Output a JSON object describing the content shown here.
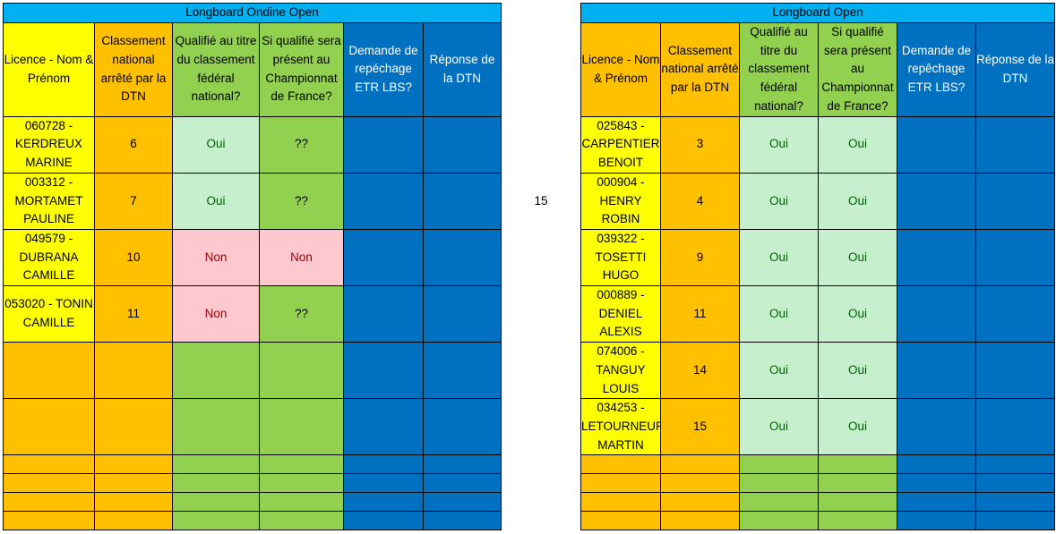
{
  "left": {
    "title": "Longboard Ondine Open",
    "headers": [
      "Licence - Nom & Prénom",
      "Classement national arrêté par la DTN",
      "Qualifié au titre du classement fédéral national?",
      "Si qualifié sera présent au Championnat de France?",
      "Demande de repéchage ETR LBS?",
      "Réponse de la DTN"
    ],
    "rows": [
      {
        "name": "060728 - KERDREUX MARINE",
        "rank": "6",
        "qualified": "Oui",
        "present": "??"
      },
      {
        "name": "003312 - MORTAMET PAULINE",
        "rank": "7",
        "qualified": "Oui",
        "present": "??"
      },
      {
        "name": "049579 - DUBRANA CAMILLE",
        "rank": "10",
        "qualified": "Non",
        "present": "Non"
      },
      {
        "name": "053020 - TONIN CAMILLE",
        "rank": "11",
        "qualified": "Non",
        "present": "??"
      }
    ]
  },
  "middle_number": "15",
  "right": {
    "title": "Longboard Open",
    "headers": [
      "Licence - Nom & Prénom",
      "Classement national arrêté par la DTN",
      "Qualifié au titre du classement fédéral national?",
      "Si qualifié sera présent au Championnat de France?",
      "Demande de repêchage ETR LBS?",
      "Réponse de la DTN"
    ],
    "rows": [
      {
        "name": "025843 - CARPENTIER BENOIT",
        "rank": "3",
        "qualified": "Oui",
        "present": "Oui"
      },
      {
        "name": "000904 - HENRY ROBIN",
        "rank": "4",
        "qualified": "Oui",
        "present": "Oui"
      },
      {
        "name": "039322 - TOSETTI HUGO",
        "rank": "9",
        "qualified": "Oui",
        "present": "Oui"
      },
      {
        "name": "000889 - DENIEL ALEXIS",
        "rank": "11",
        "qualified": "Oui",
        "present": "Oui"
      },
      {
        "name": "074006 - TANGUY LOUIS",
        "rank": "14",
        "qualified": "Oui",
        "present": "Oui"
      },
      {
        "name": "034253 - LETOURNEUR MARTIN",
        "rank": "15",
        "qualified": "Oui",
        "present": "Oui"
      }
    ]
  },
  "colors": {
    "title_bg": "#00b0f0",
    "name_bg": "#ffff00",
    "header_bg": "#ffc000",
    "green_bg": "#92d050",
    "blue_bg": "#0070c0",
    "oui_bg": "#c6efce",
    "non_bg": "#ffc7ce"
  }
}
